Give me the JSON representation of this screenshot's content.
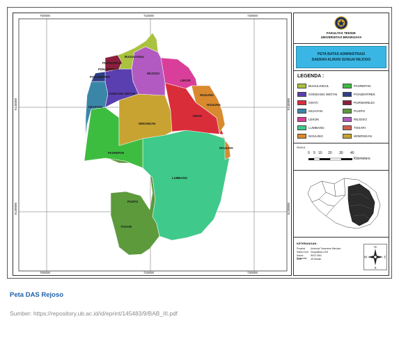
{
  "map": {
    "x_ticks": [
      "700000",
      "715000",
      "730000"
    ],
    "y_ticks": [
      "9145000",
      "9130000"
    ],
    "regions": [
      {
        "name": "BUGULKIDUL",
        "color": "#a9c23f"
      },
      {
        "name": "PURWOREJO",
        "color": "#8b1f3b"
      },
      {
        "name": "POHJENTREK",
        "color": "#2f3f87"
      },
      {
        "name": "GONDANG WETAN",
        "color": "#5a3fb0"
      },
      {
        "name": "REJOSO",
        "color": "#b25ac2"
      },
      {
        "name": "LEKOK",
        "color": "#d93f9a"
      },
      {
        "name": "NGULING",
        "color": "#d98a2e"
      },
      {
        "name": "GRATI",
        "color": "#d92d3a"
      },
      {
        "name": "KEJAYAN",
        "color": "#3a86a8"
      },
      {
        "name": "WINONGAN",
        "color": "#c8a332"
      },
      {
        "name": "PASREPAN",
        "color": "#3dbd3f"
      },
      {
        "name": "LUMBANG",
        "color": "#3fc98a"
      },
      {
        "name": "PUSPO",
        "color": "#5c9a3c"
      },
      {
        "name": "TOSARI",
        "color": "#cf6050"
      }
    ]
  },
  "sidebar": {
    "faculty_line1": "FAKULTAS TEKNIK",
    "faculty_line2": "UNIVERSITAS BRAWIJAYA",
    "title_line1": "PETA BATAS ADMINISTRASI",
    "title_line2": "DAERAH ALIRAN SUNGAI REJOSO",
    "legend_title": "LEGENDA :",
    "legend": [
      {
        "label": "BUGULKIDUL",
        "color": "#a9c23f"
      },
      {
        "label": "PASREPAN",
        "color": "#3dbd3f"
      },
      {
        "label": "GONDANG WETAN",
        "color": "#5a3fb0"
      },
      {
        "label": "POHJENTREK",
        "color": "#2f3f87"
      },
      {
        "label": "GRATI",
        "color": "#d92d3a"
      },
      {
        "label": "PURWOREJO",
        "color": "#8b1f3b"
      },
      {
        "label": "KEJAYAN",
        "color": "#3a86a8"
      },
      {
        "label": "PUSPO",
        "color": "#5c9a3c"
      },
      {
        "label": "LEKOK",
        "color": "#d93f9a"
      },
      {
        "label": "REJOSO",
        "color": "#b25ac2"
      },
      {
        "label": "LUMBANG",
        "color": "#3fc98a"
      },
      {
        "label": "TOSARI",
        "color": "#cf6050"
      },
      {
        "label": "NGULING",
        "color": "#d98a2e"
      },
      {
        "label": "WINONGAN",
        "color": "#c8a332"
      }
    ],
    "scale_label": "SKALA",
    "scale_numbers": [
      "0",
      "5",
      "10",
      "20",
      "30",
      "40"
    ],
    "scale_unit": "Kilometers",
    "info_title": "KETERANGAN :",
    "info_rows": [
      {
        "key": "Proyeksi",
        "value": "Universal Transverse Mercator"
      },
      {
        "key": "Sistem Grid",
        "value": "Geografikan UTM"
      },
      {
        "key": "Datum Horizontal",
        "value": "WGS 1984"
      },
      {
        "key": "Zone",
        "value": "49 Selatan"
      }
    ],
    "compass": {
      "n": "N",
      "s": "S",
      "e": "E",
      "w": "W"
    }
  },
  "caption": "Peta DAS Rejoso",
  "source": "Sumber: https://repository.ub.ac.id/id/eprint/145483/9/BAB_III.pdf"
}
